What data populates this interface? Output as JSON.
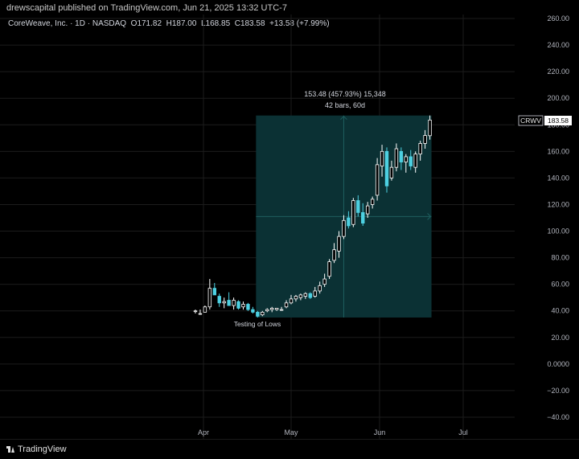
{
  "header": {
    "published": "drewscapital published on TradingView.com, Jun 21, 2025 13:32 UTC-7"
  },
  "legend": {
    "name": "CoreWeave, Inc. · 1D · NASDAQ",
    "o_label": "O",
    "o": "171.82",
    "h_label": "H",
    "h": "187.00",
    "l_label": "L",
    "l": "168.85",
    "c_label": "C",
    "c": "183.58",
    "change": "+13.58 (+7.99%)"
  },
  "footer": {
    "brand": "TradingView"
  },
  "colors": {
    "background": "#000000",
    "grid": "#1c1c1c",
    "up_body": "#000000",
    "up_border": "#ffffff",
    "down_body": "#4dd0e1",
    "measure_fill": "#0b3134",
    "measure_line": "#1e5e5e",
    "axis_text": "#b2b5be"
  },
  "chart_data": {
    "type": "candlestick",
    "symbol": "CRWV",
    "last_price_label": "183.58",
    "y_ticks": [
      "260.00",
      "240.00",
      "220.00",
      "200.00",
      "180.00",
      "160.00",
      "140.00",
      "120.00",
      "100.00",
      "80.00",
      "60.00",
      "40.00",
      "20.00",
      "0.0000",
      "−20.00",
      "−40.00"
    ],
    "y_tick_values": [
      260,
      240,
      220,
      200,
      180,
      160,
      140,
      120,
      100,
      80,
      60,
      40,
      20,
      0,
      -20,
      -40
    ],
    "ylim": [
      -44,
      268
    ],
    "x_ticks": [
      "Apr",
      "May",
      "Jun",
      "Jul"
    ],
    "annotation": "Testing of Lows",
    "measure": {
      "line1": "153.48 (457.93%) 15,348",
      "line2": "42 bars, 60d",
      "price_from": 35,
      "price_to": 187
    },
    "candles": [
      {
        "o": 40,
        "h": 41,
        "l": 38,
        "c": 40
      },
      {
        "o": 38,
        "h": 41,
        "l": 37,
        "c": 38
      },
      {
        "o": 39,
        "h": 44,
        "l": 39,
        "c": 43
      },
      {
        "o": 43,
        "h": 64,
        "l": 41,
        "c": 57
      },
      {
        "o": 57,
        "h": 61,
        "l": 52,
        "c": 52
      },
      {
        "o": 51,
        "h": 53,
        "l": 43,
        "c": 46
      },
      {
        "o": 46,
        "h": 50,
        "l": 42,
        "c": 47
      },
      {
        "o": 48,
        "h": 54,
        "l": 44,
        "c": 44
      },
      {
        "o": 44,
        "h": 50,
        "l": 41,
        "c": 48
      },
      {
        "o": 47,
        "h": 48,
        "l": 41,
        "c": 42
      },
      {
        "o": 43,
        "h": 47,
        "l": 41,
        "c": 45
      },
      {
        "o": 45,
        "h": 46,
        "l": 40,
        "c": 41
      },
      {
        "o": 41,
        "h": 43,
        "l": 38,
        "c": 39
      },
      {
        "o": 39,
        "h": 40,
        "l": 35,
        "c": 36
      },
      {
        "o": 37,
        "h": 40,
        "l": 36,
        "c": 39
      },
      {
        "o": 40,
        "h": 42,
        "l": 39,
        "c": 41
      },
      {
        "o": 41,
        "h": 43,
        "l": 39,
        "c": 42
      },
      {
        "o": 41,
        "h": 42,
        "l": 40,
        "c": 42
      },
      {
        "o": 41,
        "h": 43,
        "l": 40,
        "c": 41
      },
      {
        "o": 43,
        "h": 48,
        "l": 42,
        "c": 46
      },
      {
        "o": 46,
        "h": 52,
        "l": 45,
        "c": 49
      },
      {
        "o": 49,
        "h": 52,
        "l": 47,
        "c": 51
      },
      {
        "o": 50,
        "h": 53,
        "l": 48,
        "c": 52
      },
      {
        "o": 51,
        "h": 54,
        "l": 49,
        "c": 53
      },
      {
        "o": 53,
        "h": 54,
        "l": 49,
        "c": 50
      },
      {
        "o": 51,
        "h": 58,
        "l": 50,
        "c": 55
      },
      {
        "o": 55,
        "h": 62,
        "l": 53,
        "c": 59
      },
      {
        "o": 60,
        "h": 68,
        "l": 58,
        "c": 64
      },
      {
        "o": 66,
        "h": 79,
        "l": 64,
        "c": 77
      },
      {
        "o": 78,
        "h": 91,
        "l": 76,
        "c": 86
      },
      {
        "o": 85,
        "h": 100,
        "l": 80,
        "c": 96
      },
      {
        "o": 96,
        "h": 112,
        "l": 94,
        "c": 108
      },
      {
        "o": 110,
        "h": 115,
        "l": 102,
        "c": 104
      },
      {
        "o": 105,
        "h": 125,
        "l": 103,
        "c": 123
      },
      {
        "o": 123,
        "h": 127,
        "l": 111,
        "c": 114
      },
      {
        "o": 114,
        "h": 121,
        "l": 104,
        "c": 106
      },
      {
        "o": 113,
        "h": 122,
        "l": 110,
        "c": 119
      },
      {
        "o": 120,
        "h": 126,
        "l": 117,
        "c": 124
      },
      {
        "o": 127,
        "h": 155,
        "l": 123,
        "c": 150
      },
      {
        "o": 149,
        "h": 165,
        "l": 141,
        "c": 160
      },
      {
        "o": 160,
        "h": 163,
        "l": 129,
        "c": 134
      },
      {
        "o": 140,
        "h": 153,
        "l": 138,
        "c": 148
      },
      {
        "o": 148,
        "h": 166,
        "l": 145,
        "c": 162
      },
      {
        "o": 160,
        "h": 163,
        "l": 146,
        "c": 152
      },
      {
        "o": 152,
        "h": 158,
        "l": 144,
        "c": 156
      },
      {
        "o": 156,
        "h": 161,
        "l": 146,
        "c": 149
      },
      {
        "o": 148,
        "h": 160,
        "l": 144,
        "c": 158
      },
      {
        "o": 158,
        "h": 168,
        "l": 153,
        "c": 166
      },
      {
        "o": 166,
        "h": 176,
        "l": 162,
        "c": 172
      },
      {
        "o": 171.82,
        "h": 187,
        "l": 168.85,
        "c": 183.58
      }
    ]
  }
}
